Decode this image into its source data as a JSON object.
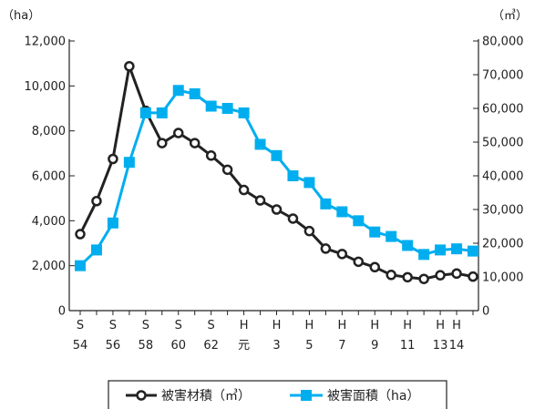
{
  "chart_data": {
    "type": "line",
    "left_unit": "（ha）",
    "right_unit": "（㎥）",
    "left_axis": {
      "min": 0,
      "max": 12000,
      "ticks": [
        0,
        2000,
        4000,
        6000,
        8000,
        10000,
        12000
      ],
      "tick_labels": [
        "0",
        "2,000",
        "4,000",
        "6,000",
        "8,000",
        "10,000",
        "12,000"
      ]
    },
    "right_axis": {
      "min": 0,
      "max": 80000,
      "ticks": [
        0,
        10000,
        20000,
        30000,
        40000,
        50000,
        60000,
        70000,
        80000
      ],
      "tick_labels": [
        "0",
        "10,000",
        "20,000",
        "30,000",
        "40,000",
        "50,000",
        "60,000",
        "70,000",
        "80,000"
      ]
    },
    "x": [
      "S54",
      "S55",
      "S56",
      "S57",
      "S58",
      "S59",
      "S60",
      "S61",
      "S62",
      "S63",
      "H元",
      "H2",
      "H3",
      "H4",
      "H5",
      "H6",
      "H7",
      "H8",
      "H9",
      "H10",
      "H11",
      "H12",
      "H13",
      "H14",
      "H15"
    ],
    "x_tick_labels": [
      {
        "era": "S",
        "year": "54",
        "index": 0
      },
      {
        "era": "S",
        "year": "56",
        "index": 2
      },
      {
        "era": "S",
        "year": "58",
        "index": 4
      },
      {
        "era": "S",
        "year": "60",
        "index": 6
      },
      {
        "era": "S",
        "year": "62",
        "index": 8
      },
      {
        "era": "H",
        "year": "元",
        "index": 10
      },
      {
        "era": "H",
        "year": "3",
        "index": 12
      },
      {
        "era": "H",
        "year": "5",
        "index": 14
      },
      {
        "era": "H",
        "year": "7",
        "index": 16
      },
      {
        "era": "H",
        "year": "9",
        "index": 18
      },
      {
        "era": "H",
        "year": "11",
        "index": 20
      },
      {
        "era": "H",
        "year": "13",
        "index": 22
      },
      {
        "era": "H",
        "year": "14",
        "index": 23
      }
    ],
    "series": [
      {
        "name": "被害材積（㎥）",
        "axis": "right",
        "color": "#222222",
        "marker": "circle",
        "values": [
          22700,
          32500,
          45000,
          72500,
          59300,
          49700,
          52700,
          49700,
          46000,
          41800,
          35800,
          32700,
          30000,
          27300,
          23600,
          18400,
          16800,
          14500,
          12900,
          10600,
          9900,
          9400,
          10500,
          11000,
          10100
        ]
      },
      {
        "name": "被害面積（ha）",
        "axis": "left",
        "color": "#00aeef",
        "marker": "square",
        "values": [
          2000,
          2700,
          3900,
          6600,
          8800,
          8800,
          9800,
          9650,
          9100,
          9000,
          8800,
          7400,
          6900,
          6000,
          5700,
          4750,
          4400,
          4000,
          3500,
          3300,
          2900,
          2500,
          2700,
          2750,
          2650
        ]
      }
    ],
    "legend_position": "bottom",
    "grid": false
  }
}
